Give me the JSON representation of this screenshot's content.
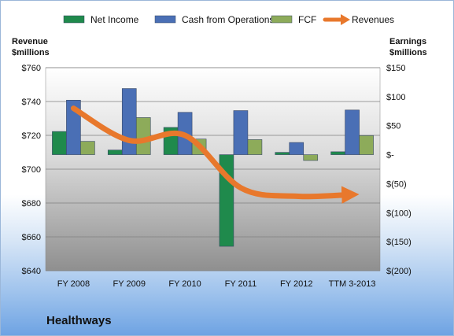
{
  "chart_data": {
    "type": "bar",
    "title": "Healthways",
    "categories": [
      "FY 2008",
      "FY 2009",
      "FY 2010",
      "FY 2011",
      "FY 2012",
      "TTM 3-2013"
    ],
    "left_axis": {
      "label_line1": "Revenue",
      "label_line2": "$millions",
      "ylim": [
        640,
        760
      ],
      "ticks": [
        640,
        660,
        680,
        700,
        720,
        740,
        760
      ],
      "tick_labels": [
        "$640",
        "$660",
        "$680",
        "$700",
        "$720",
        "$740",
        "$760"
      ]
    },
    "right_axis": {
      "label_line1": "Earnings",
      "label_line2": "$millions",
      "ylim": [
        -200,
        150
      ],
      "ticks": [
        -200,
        -150,
        -100,
        -50,
        0,
        50,
        100,
        150
      ],
      "tick_labels": [
        "$(200)",
        "$(150)",
        "$(100)",
        "$(50)",
        "$-",
        "$50",
        "$100",
        "$150"
      ]
    },
    "series": [
      {
        "name": "Net Income",
        "type": "bar",
        "axis": "right",
        "color": "#1f8a4c",
        "values": [
          40,
          8,
          47,
          -158,
          4,
          5
        ]
      },
      {
        "name": "Cash from Operations",
        "type": "bar",
        "axis": "right",
        "color": "#4a6fb5",
        "values": [
          94,
          114,
          73,
          76,
          21,
          77
        ]
      },
      {
        "name": "FCF",
        "type": "bar",
        "axis": "right",
        "color": "#8dab5a",
        "values": [
          23,
          64,
          27,
          26,
          -10,
          33
        ]
      },
      {
        "name": "Revenues",
        "type": "line",
        "axis": "left",
        "color": "#e8782c",
        "values": [
          736,
          717,
          720,
          689,
          684,
          685
        ]
      }
    ],
    "legend_position": "top",
    "grid": true
  }
}
